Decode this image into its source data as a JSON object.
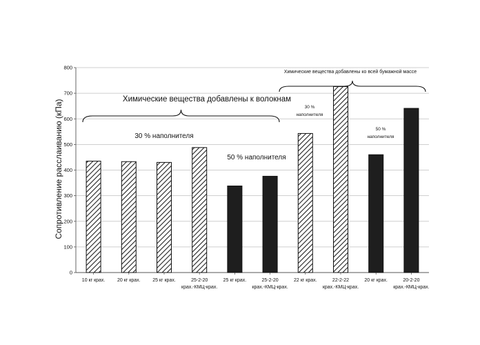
{
  "chart_data": {
    "type": "bar",
    "ylabel": "Сопротивление расслаиванию (кПа)",
    "ylim": [
      0,
      800
    ],
    "yticks": [
      0,
      100,
      200,
      300,
      400,
      500,
      600,
      700,
      800
    ],
    "grid": true,
    "bars": [
      {
        "label": [
          "10 кг крах."
        ],
        "value": 435,
        "style": "hatched"
      },
      {
        "label": [
          "20 кг крах."
        ],
        "value": 433,
        "style": "hatched"
      },
      {
        "label": [
          "25 кг крах."
        ],
        "value": 430,
        "style": "hatched"
      },
      {
        "label": [
          "25-2-20",
          "крах.-КМЦ-крах."
        ],
        "value": 488,
        "style": "hatched"
      },
      {
        "label": [
          "25 кг крах."
        ],
        "value": 338,
        "style": "solid"
      },
      {
        "label": [
          "25-2-20",
          "крах.-КМЦ-крах."
        ],
        "value": 376,
        "style": "solid"
      },
      {
        "label": [
          "22 кг крах."
        ],
        "value": 543,
        "style": "hatched"
      },
      {
        "label": [
          "22-2-22",
          "крах.-КМЦ-крах."
        ],
        "value": 726,
        "style": "hatched"
      },
      {
        "label": [
          "20 кг крах."
        ],
        "value": 460,
        "style": "solid"
      },
      {
        "label": [
          "20-2-20",
          "крах.-КМЦ-крах."
        ],
        "value": 641,
        "style": "solid"
      }
    ],
    "annotations": {
      "fibers_group": "Химические вещества добавлены к волокнам",
      "whole_mass_group": "Химические вещества добавлены ко всей бумажной массе",
      "filler_30_a": "30 %  наполнителя",
      "filler_50_a": "50 %  наполнителя",
      "filler_30_b_pct": "30 %",
      "filler_30_b_word": "наполнителя",
      "filler_50_b_pct": "50 %",
      "filler_50_b_word": "наполнителя"
    },
    "colors": {
      "bar_solid": "#1e1e1e",
      "hatch": "#222222",
      "grid": "#bfbfbf",
      "axis": "#555555"
    }
  }
}
